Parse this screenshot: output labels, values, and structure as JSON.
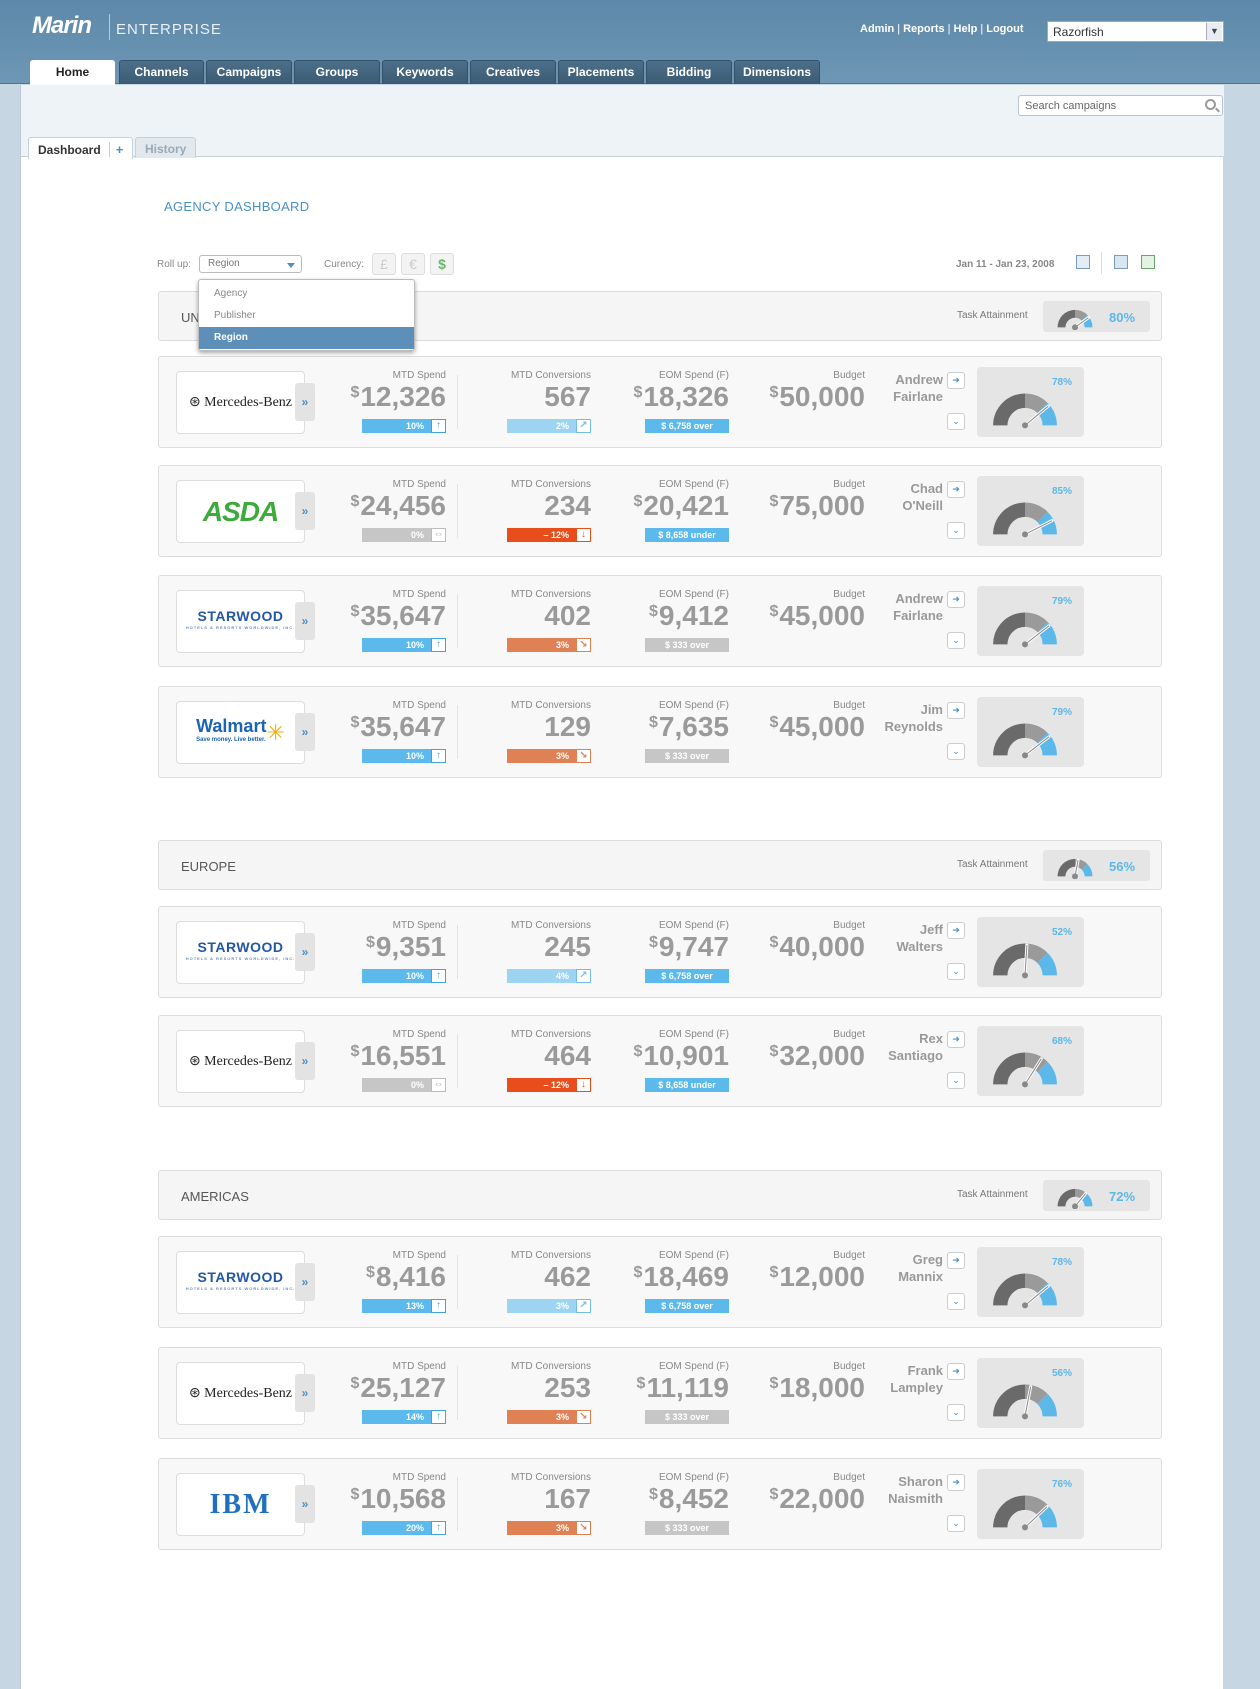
{
  "app": {
    "brand": "Marin",
    "product": "ENTERPRISE"
  },
  "top_links": [
    "Admin",
    "Reports",
    "Help",
    "Logout"
  ],
  "account_select": {
    "value": "Razorfish"
  },
  "nav_tabs": [
    "Home",
    "Channels",
    "Campaigns",
    "Groups",
    "Keywords",
    "Creatives",
    "Placements",
    "Bidding",
    "Dimensions"
  ],
  "active_tab": "Home",
  "search": {
    "placeholder": "Search campaigns"
  },
  "subtabs": {
    "dashboard": "Dashboard",
    "add": "+",
    "history": "History"
  },
  "page_title": "AGENCY DASHBOARD",
  "controls": {
    "rollup_label": "Roll up:",
    "rollup_value": "Region",
    "rollup_options": [
      "Agency",
      "Publisher",
      "Region"
    ],
    "currency_label": "Curency:",
    "currencies": [
      "£",
      "€",
      "$"
    ],
    "selected_currency": "$",
    "date_range": "Jan 11 - Jan 23, 2008"
  },
  "labels": {
    "mtd_spend": "MTD Spend",
    "mtd_conv": "MTD Conversions",
    "eom_spend": "EOM Spend (F)",
    "budget": "Budget",
    "task_attainment": "Task Attainment",
    "currency_symbol": "$"
  },
  "regions": [
    {
      "name": "UN",
      "task_pct": "80%",
      "task_frac": 0.8,
      "clients": [
        {
          "logo": "Mercedes-Benz",
          "mtd_spend": "12,326",
          "spend_change": "10%",
          "spend_dir": "up",
          "conversions": "567",
          "conv_change": "2%",
          "conv_dir": "uplight",
          "eom_spend": "18,326",
          "eom_note": "$ 6,758 over",
          "eom_style": "blue",
          "budget": "50,000",
          "manager": [
            "Andrew",
            "Fairlane"
          ],
          "gauge_pct": "78%",
          "gauge_frac": 0.78
        },
        {
          "logo": "ASDA",
          "mtd_spend": "24,456",
          "spend_change": "0%",
          "spend_dir": "flat",
          "conversions": "234",
          "conv_change": "– 12%",
          "conv_dir": "down",
          "eom_spend": "20,421",
          "eom_note": "$ 8,658 under",
          "eom_style": "blue",
          "budget": "75,000",
          "manager": [
            "Chad",
            "O'Neill"
          ],
          "gauge_pct": "85%",
          "gauge_frac": 0.85
        },
        {
          "logo": "STARWOOD",
          "mtd_spend": "35,647",
          "spend_change": "10%",
          "spend_dir": "up",
          "conversions": "402",
          "conv_change": "3%",
          "conv_dir": "dnorange",
          "eom_spend": "9,412",
          "eom_note": "$ 333 over",
          "eom_style": "gray",
          "budget": "45,000",
          "manager": [
            "Andrew",
            "Fairlane"
          ],
          "gauge_pct": "79%",
          "gauge_frac": 0.79
        },
        {
          "logo": "Walmart",
          "mtd_spend": "35,647",
          "spend_change": "10%",
          "spend_dir": "up",
          "conversions": "129",
          "conv_change": "3%",
          "conv_dir": "dnorange",
          "eom_spend": "7,635",
          "eom_note": "$ 333 over",
          "eom_style": "gray",
          "budget": "45,000",
          "manager": [
            "Jim",
            "Reynolds"
          ],
          "gauge_pct": "79%",
          "gauge_frac": 0.79
        }
      ]
    },
    {
      "name": "EUROPE",
      "task_pct": "56%",
      "task_frac": 0.56,
      "clients": [
        {
          "logo": "STARWOOD",
          "mtd_spend": "9,351",
          "spend_change": "10%",
          "spend_dir": "up",
          "conversions": "245",
          "conv_change": "4%",
          "conv_dir": "uplight",
          "eom_spend": "9,747",
          "eom_note": "$ 6,758 over",
          "eom_style": "blue",
          "budget": "40,000",
          "manager": [
            "Jeff",
            "Walters"
          ],
          "gauge_pct": "52%",
          "gauge_frac": 0.52
        },
        {
          "logo": "Mercedes-Benz",
          "mtd_spend": "16,551",
          "spend_change": "0%",
          "spend_dir": "flat",
          "conversions": "464",
          "conv_change": "– 12%",
          "conv_dir": "down",
          "eom_spend": "10,901",
          "eom_note": "$ 8,658 under",
          "eom_style": "blue",
          "budget": "32,000",
          "manager": [
            "Rex",
            "Santiago"
          ],
          "gauge_pct": "68%",
          "gauge_frac": 0.68
        }
      ]
    },
    {
      "name": "AMERICAS",
      "task_pct": "72%",
      "task_frac": 0.72,
      "clients": [
        {
          "logo": "STARWOOD",
          "mtd_spend": "8,416",
          "spend_change": "13%",
          "spend_dir": "up",
          "conversions": "462",
          "conv_change": "3%",
          "conv_dir": "uplight",
          "eom_spend": "18,469",
          "eom_note": "$ 6,758 over",
          "eom_style": "blue",
          "budget": "12,000",
          "manager": [
            "Greg",
            "Mannix"
          ],
          "gauge_pct": "78%",
          "gauge_frac": 0.78
        },
        {
          "logo": "Mercedes-Benz",
          "mtd_spend": "25,127",
          "spend_change": "14%",
          "spend_dir": "up",
          "conversions": "253",
          "conv_change": "3%",
          "conv_dir": "dnorange",
          "eom_spend": "11,119",
          "eom_note": "$ 333 over",
          "eom_style": "gray",
          "budget": "18,000",
          "manager": [
            "Frank",
            "Lampley"
          ],
          "gauge_pct": "56%",
          "gauge_frac": 0.56
        },
        {
          "logo": "IBM",
          "mtd_spend": "10,568",
          "spend_change": "20%",
          "spend_dir": "up",
          "conversions": "167",
          "conv_change": "3%",
          "conv_dir": "dnorange",
          "eom_spend": "8,452",
          "eom_note": "$ 333 over",
          "eom_style": "gray",
          "budget": "22,000",
          "manager": [
            "Sharon",
            "Naismith"
          ],
          "gauge_pct": "76%",
          "gauge_frac": 0.76
        }
      ]
    }
  ]
}
